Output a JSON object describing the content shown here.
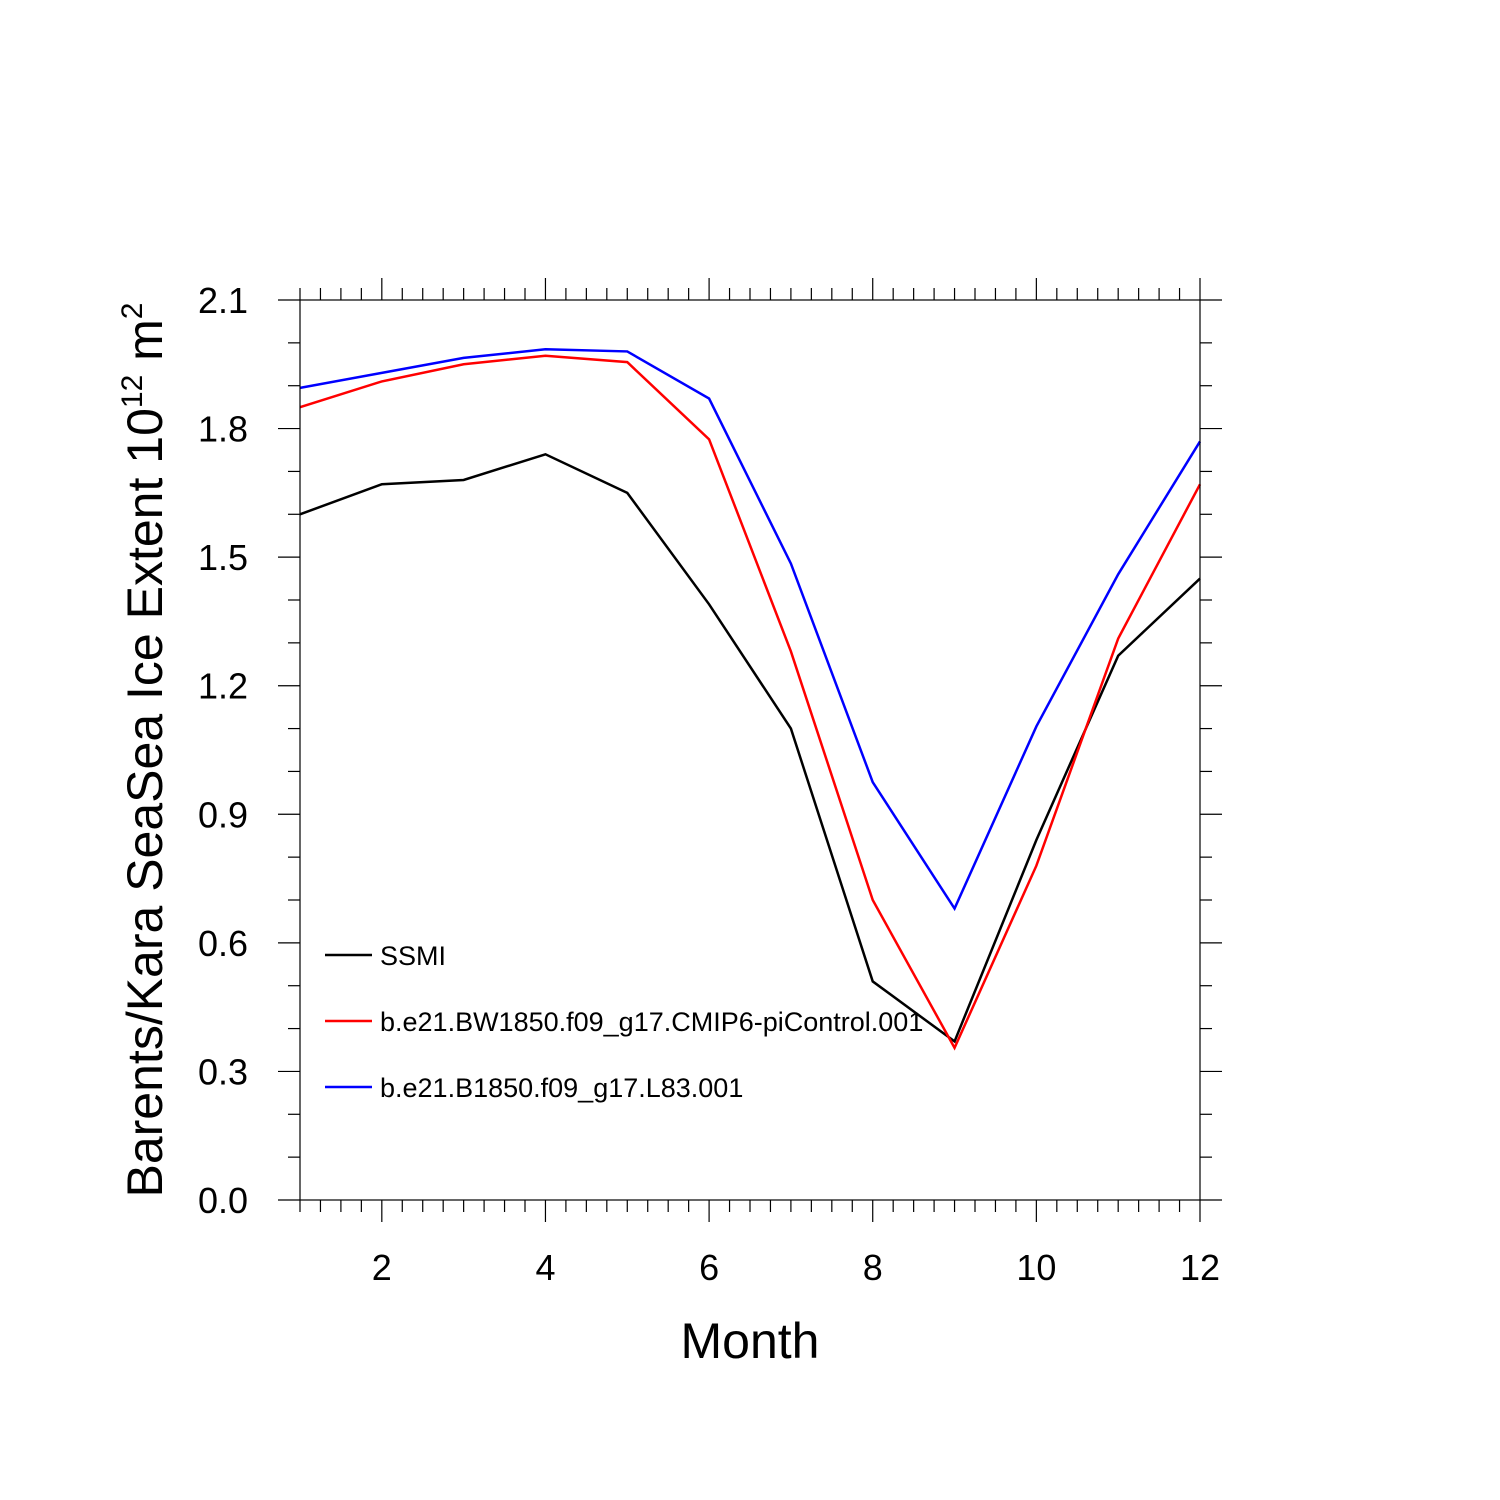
{
  "chart_data": {
    "type": "line",
    "title": "",
    "xlabel": "Month",
    "ylabel": "Barents/Kara SeaSea Ice Extent 10",
    "ylabel_sup": "12",
    "ylabel_unit": " m",
    "ylabel_unit_sup": "2",
    "xlim": [
      1,
      12
    ],
    "ylim": [
      0.0,
      2.1
    ],
    "x_ticks": [
      2,
      4,
      6,
      8,
      10,
      12
    ],
    "x_tick_labels": [
      "2",
      "4",
      "6",
      "8",
      "10",
      "12"
    ],
    "y_ticks": [
      0.0,
      0.3,
      0.6,
      0.9,
      1.2,
      1.5,
      1.8,
      2.1
    ],
    "y_tick_labels": [
      "0.0",
      "0.3",
      "0.6",
      "0.9",
      "1.2",
      "1.5",
      "1.8",
      "2.1"
    ],
    "x": [
      1,
      2,
      3,
      4,
      5,
      6,
      7,
      8,
      9,
      10,
      11,
      12
    ],
    "grid": false,
    "legend_position": "lower-left",
    "series": [
      {
        "name": "SSMI",
        "color": "#000000",
        "values": [
          1.6,
          1.67,
          1.68,
          1.74,
          1.65,
          1.39,
          1.1,
          0.51,
          0.37,
          0.84,
          1.27,
          1.45
        ]
      },
      {
        "name": "b.e21.BW1850.f09_g17.CMIP6-piControl.001",
        "color": "#ff0000",
        "values": [
          1.85,
          1.91,
          1.95,
          1.97,
          1.955,
          1.775,
          1.28,
          0.7,
          0.355,
          0.78,
          1.31,
          1.67
        ]
      },
      {
        "name": "b.e21.B1850.f09_g17.L83.001",
        "color": "#0000ff",
        "values": [
          1.895,
          1.93,
          1.965,
          1.985,
          1.98,
          1.87,
          1.485,
          0.975,
          0.68,
          1.105,
          1.46,
          1.77
        ]
      }
    ]
  }
}
